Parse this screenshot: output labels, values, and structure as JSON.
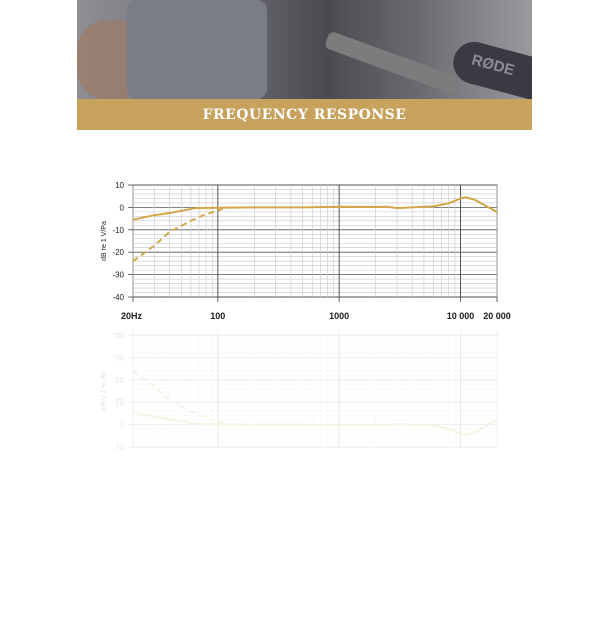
{
  "hero": {
    "brand_on_mic": "RØDE"
  },
  "section_title": "FREQUENCY RESPONSE",
  "chart_data": {
    "type": "line",
    "title": "",
    "ylabel": "dB re 1 V/Pa",
    "xlabel": "",
    "xscale": "log",
    "xlim": [
      20,
      20000
    ],
    "ylim": [
      -40,
      10
    ],
    "grid": true,
    "x_tick_labels": [
      {
        "value": 20,
        "label": "20Hz"
      },
      {
        "value": 100,
        "label": "100"
      },
      {
        "value": 1000,
        "label": "1000"
      },
      {
        "value": 10000,
        "label": "10 000"
      },
      {
        "value": 20000,
        "label": "20 000"
      }
    ],
    "y_ticks": [
      10,
      0,
      -10,
      -20,
      -30,
      -40
    ],
    "series_color": "#d4a84a",
    "series": [
      {
        "style": "solid",
        "x": [
          20,
          30,
          40,
          50,
          65,
          100,
          200,
          500,
          1000,
          2000,
          2500,
          3000,
          5000,
          6000,
          8000,
          10000,
          11000,
          13000,
          20000
        ],
        "y": [
          -5.5,
          -3.5,
          -2.5,
          -1.5,
          -0.3,
          -0.2,
          0,
          0,
          0.3,
          0.2,
          0.3,
          -0.3,
          0.3,
          0.5,
          1.8,
          4,
          4.5,
          3.5,
          -2
        ]
      },
      {
        "style": "dashed",
        "x": [
          20,
          30,
          40,
          60,
          80,
          100,
          110
        ],
        "y": [
          -24,
          -17,
          -11,
          -6,
          -3,
          -1.5,
          -0.5
        ]
      }
    ]
  }
}
